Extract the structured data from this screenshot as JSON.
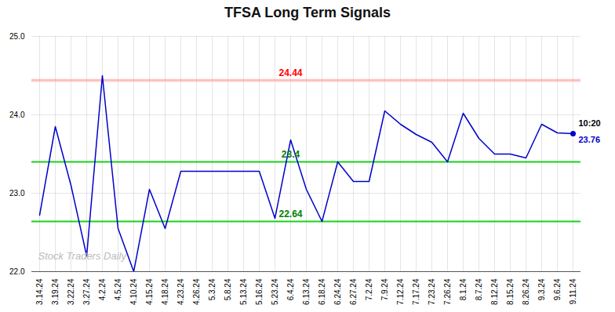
{
  "chart_data": {
    "type": "line",
    "title": "TFSA Long Term Signals",
    "categories": [
      "3.14.24",
      "3.19.24",
      "3.22.24",
      "3.27.24",
      "4.2.24",
      "4.5.24",
      "4.10.24",
      "4.15.24",
      "4.18.24",
      "4.23.24",
      "4.26.24",
      "5.3.24",
      "5.8.24",
      "5.13.24",
      "5.16.24",
      "5.23.24",
      "6.4.24",
      "6.13.24",
      "6.18.24",
      "6.24.24",
      "6.27.24",
      "7.2.24",
      "7.9.24",
      "7.12.24",
      "7.17.24",
      "7.23.24",
      "7.26.24",
      "8.1.24",
      "8.7.24",
      "8.12.24",
      "8.15.24",
      "8.26.24",
      "9.3.24",
      "9.6.24",
      "9.11.24"
    ],
    "values": [
      22.72,
      23.85,
      23.1,
      22.2,
      24.5,
      22.55,
      22.0,
      23.05,
      22.55,
      23.28,
      23.28,
      23.28,
      23.28,
      23.28,
      23.28,
      22.68,
      23.68,
      23.05,
      22.64,
      23.4,
      23.15,
      23.15,
      24.05,
      23.88,
      23.75,
      23.65,
      23.4,
      24.02,
      23.7,
      23.5,
      23.5,
      23.45,
      23.88,
      23.77,
      23.76
    ],
    "color": "#0000cc",
    "ylim": [
      22,
      25
    ],
    "yticks": [
      22,
      23,
      24,
      25
    ],
    "grid": true,
    "reference_lines": [
      {
        "value": 24.44,
        "color": "#ff9999"
      },
      {
        "value": 23.4,
        "color": "#00cc00"
      },
      {
        "value": 22.64,
        "color": "#00cc00"
      }
    ],
    "annotations": [
      {
        "text": "24.44",
        "x": "6.4.24",
        "y": 24.44,
        "color": "red"
      },
      {
        "text": "23.4",
        "x": "6.4.24",
        "y": 23.4,
        "color": "green"
      },
      {
        "text": "22.64",
        "x": "6.4.24",
        "y": 22.64,
        "color": "green"
      }
    ],
    "last_point": {
      "x": "9.11.24",
      "y": 23.76,
      "time_label": "10:20",
      "value_label": "23.76",
      "time_color": "black",
      "value_color": "#0000cc"
    },
    "watermark": "Stock Traders Daily"
  }
}
